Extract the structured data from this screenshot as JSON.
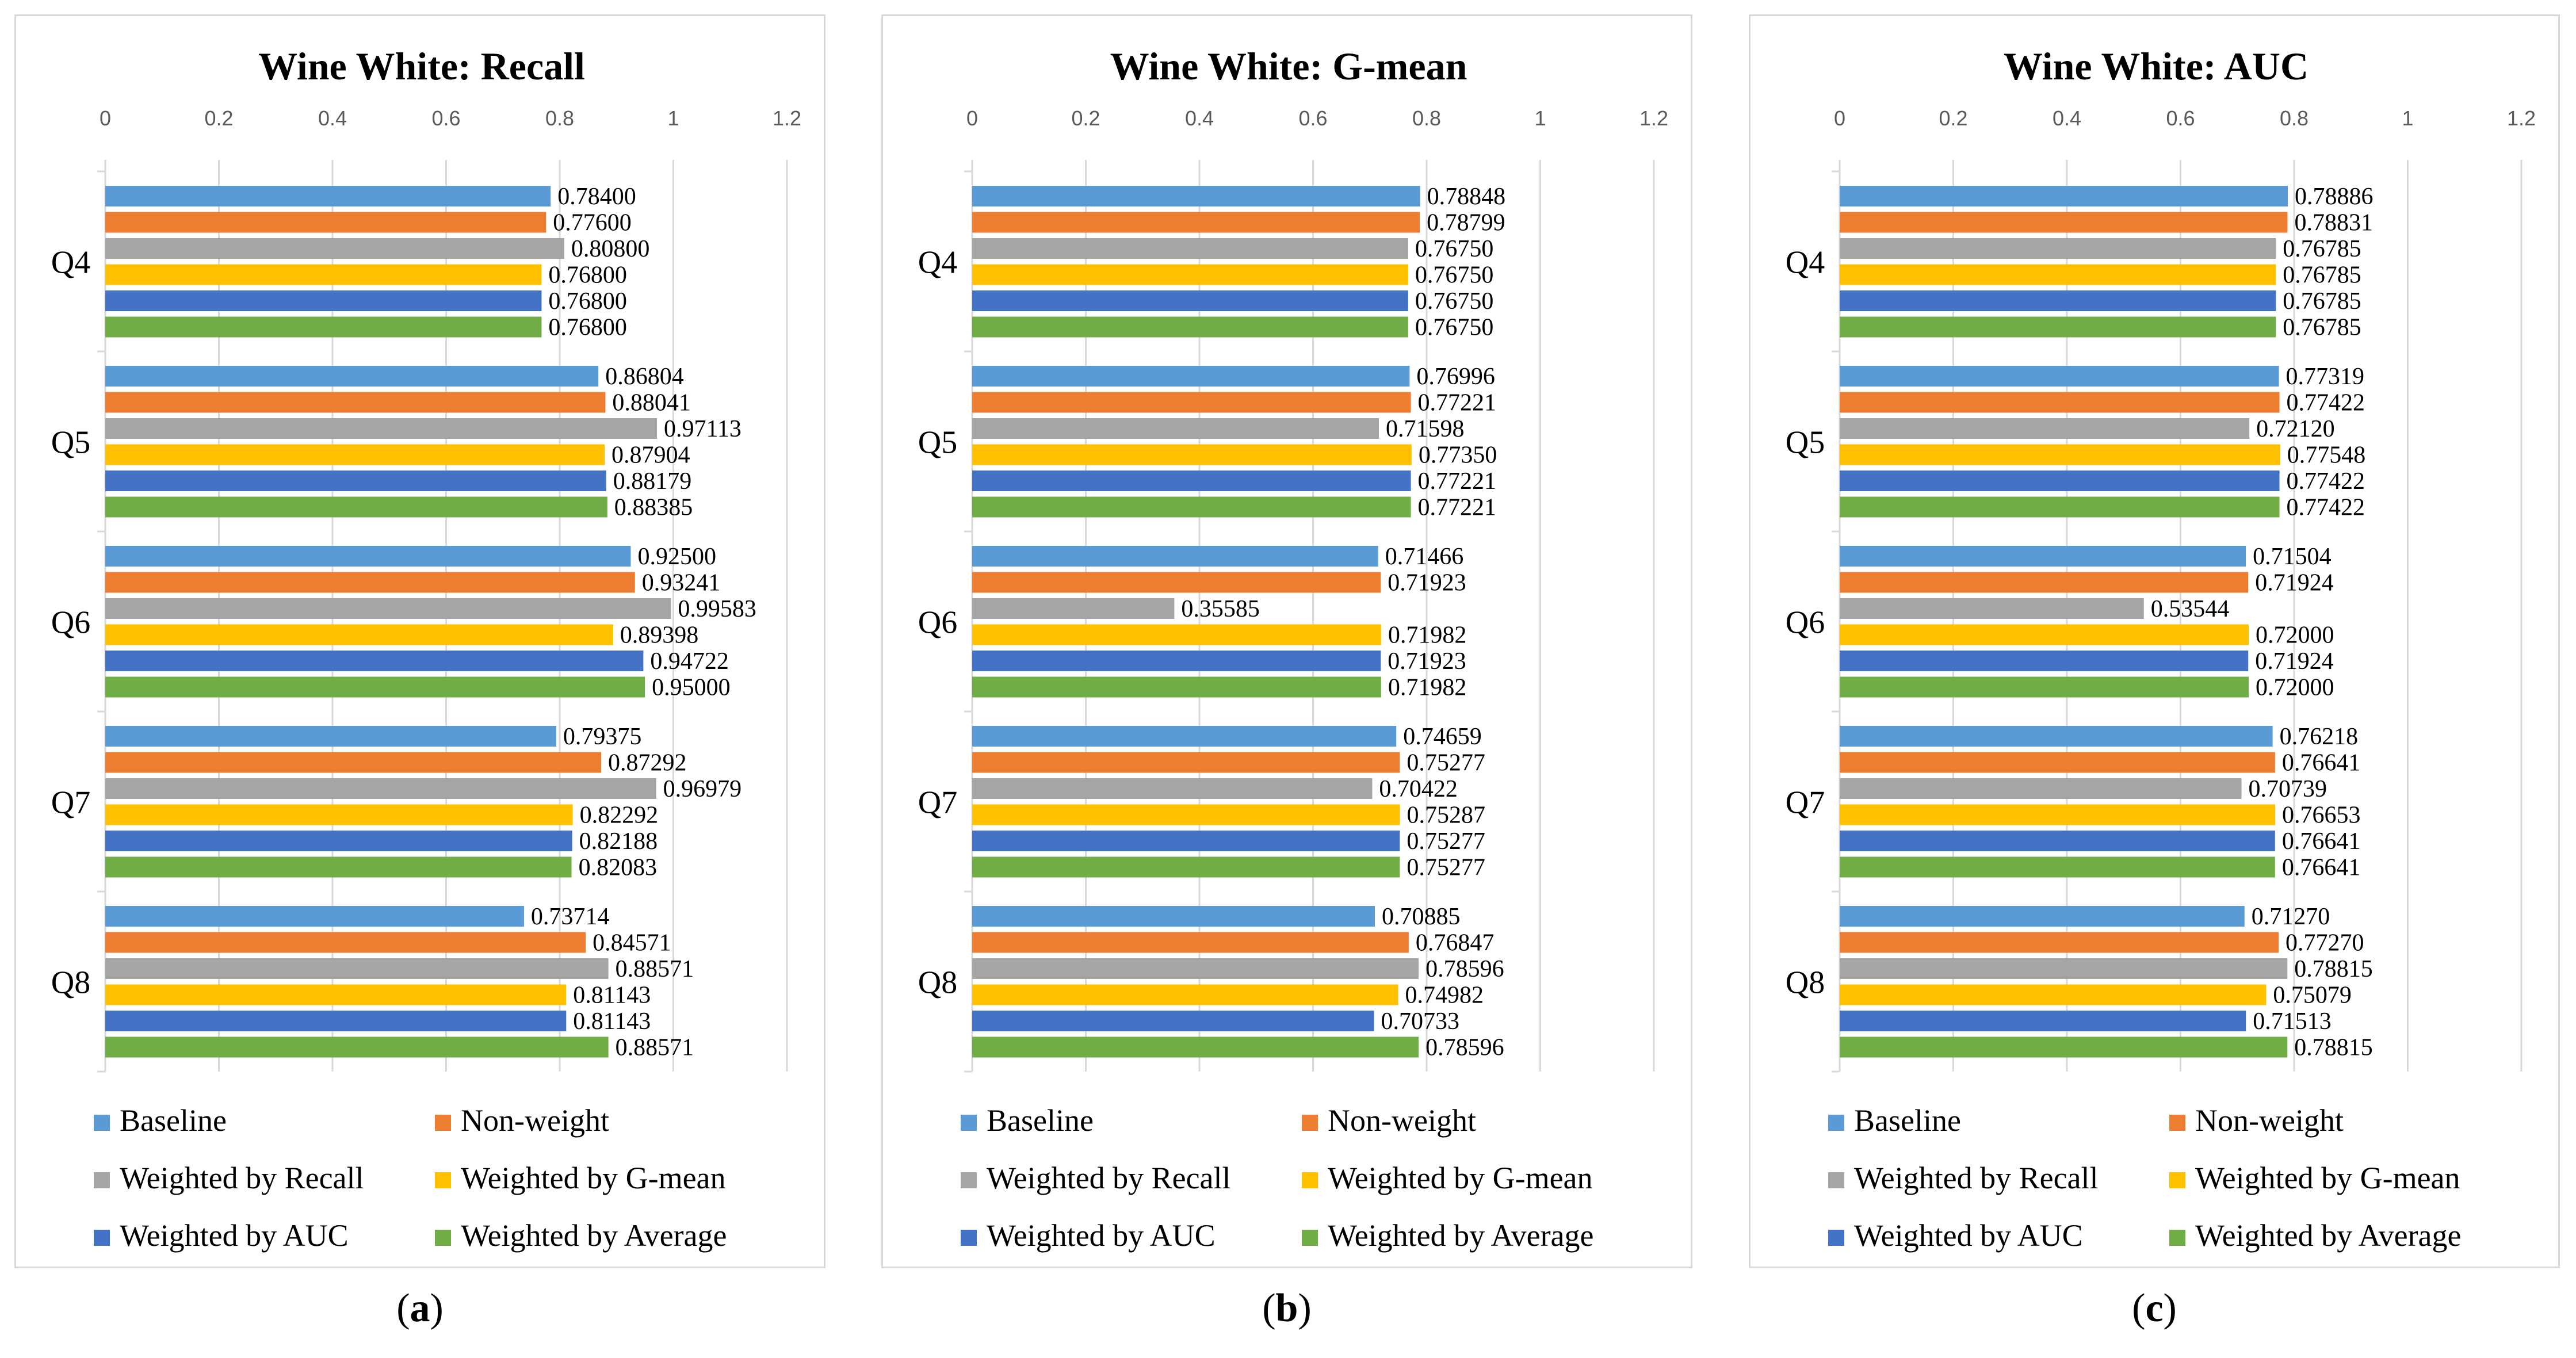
{
  "legend_labels": [
    "Baseline",
    "Non-weight",
    "Weighted by Recall",
    "Weighted by G-mean",
    "Weighted by AUC",
    "Weighted by Average"
  ],
  "series_colors": [
    "#5b9bd5",
    "#ed7d31",
    "#a5a5a5",
    "#ffc000",
    "#4472c4",
    "#70ad47"
  ],
  "chart_data": [
    {
      "type": "bar",
      "orientation": "horizontal",
      "title": "Wine White: Recall",
      "caption_letter": "a",
      "categories": [
        "Q4",
        "Q5",
        "Q6",
        "Q7",
        "Q8"
      ],
      "xlim": [
        0,
        1.2
      ],
      "xticks": [
        "0",
        "0.2",
        "0.4",
        "0.6",
        "0.8",
        "1",
        "1.2"
      ],
      "grid": true,
      "legend_position": "bottom",
      "series": [
        {
          "name": "Baseline",
          "values": [
            0.784,
            0.86804,
            0.925,
            0.79375,
            0.73714
          ],
          "labels": [
            "0.78400",
            "0.86804",
            "0.92500",
            "0.79375",
            "0.73714"
          ]
        },
        {
          "name": "Non-weight",
          "values": [
            0.776,
            0.88041,
            0.93241,
            0.87292,
            0.84571
          ],
          "labels": [
            "0.77600",
            "0.88041",
            "0.93241",
            "0.87292",
            "0.84571"
          ]
        },
        {
          "name": "Weighted by Recall",
          "values": [
            0.808,
            0.97113,
            0.99583,
            0.96979,
            0.88571
          ],
          "labels": [
            "0.80800",
            "0.97113",
            "0.99583",
            "0.96979",
            "0.88571"
          ]
        },
        {
          "name": "Weighted by G-mean",
          "values": [
            0.768,
            0.87904,
            0.89398,
            0.82292,
            0.81143
          ],
          "labels": [
            "0.76800",
            "0.87904",
            "0.89398",
            "0.82292",
            "0.81143"
          ]
        },
        {
          "name": "Weighted by AUC",
          "values": [
            0.768,
            0.88179,
            0.94722,
            0.82188,
            0.81143
          ],
          "labels": [
            "0.76800",
            "0.88179",
            "0.94722",
            "0.82188",
            "0.81143"
          ]
        },
        {
          "name": "Weighted by Average",
          "values": [
            0.768,
            0.88385,
            0.95,
            0.82083,
            0.88571
          ],
          "labels": [
            "0.76800",
            "0.88385",
            "0.95000",
            "0.82083",
            "0.88571"
          ]
        }
      ]
    },
    {
      "type": "bar",
      "orientation": "horizontal",
      "title": "Wine White: G-mean",
      "caption_letter": "b",
      "categories": [
        "Q4",
        "Q5",
        "Q6",
        "Q7",
        "Q8"
      ],
      "xlim": [
        0,
        1.2
      ],
      "xticks": [
        "0",
        "0.2",
        "0.4",
        "0.6",
        "0.8",
        "1",
        "1.2"
      ],
      "grid": true,
      "legend_position": "bottom",
      "series": [
        {
          "name": "Baseline",
          "values": [
            0.78848,
            0.76996,
            0.71466,
            0.74659,
            0.70885
          ],
          "labels": [
            "0.78848",
            "0.76996",
            "0.71466",
            "0.74659",
            "0.70885"
          ]
        },
        {
          "name": "Non-weight",
          "values": [
            0.78799,
            0.77221,
            0.71923,
            0.75277,
            0.76847
          ],
          "labels": [
            "0.78799",
            "0.77221",
            "0.71923",
            "0.75277",
            "0.76847"
          ]
        },
        {
          "name": "Weighted by Recall",
          "values": [
            0.7675,
            0.71598,
            0.35585,
            0.70422,
            0.78596
          ],
          "labels": [
            "0.76750",
            "0.71598",
            "0.35585",
            "0.70422",
            "0.78596"
          ]
        },
        {
          "name": "Weighted by G-mean",
          "values": [
            0.7675,
            0.7735,
            0.71982,
            0.75287,
            0.74982
          ],
          "labels": [
            "0.76750",
            "0.77350",
            "0.71982",
            "0.75287",
            "0.74982"
          ]
        },
        {
          "name": "Weighted by AUC",
          "values": [
            0.7675,
            0.77221,
            0.71923,
            0.75277,
            0.70733
          ],
          "labels": [
            "0.76750",
            "0.77221",
            "0.71923",
            "0.75277",
            "0.70733"
          ]
        },
        {
          "name": "Weighted by Average",
          "values": [
            0.7675,
            0.77221,
            0.71982,
            0.75277,
            0.78596
          ],
          "labels": [
            "0.76750",
            "0.77221",
            "0.71982",
            "0.75277",
            "0.78596"
          ]
        }
      ]
    },
    {
      "type": "bar",
      "orientation": "horizontal",
      "title": "Wine White: AUC",
      "caption_letter": "c",
      "categories": [
        "Q4",
        "Q5",
        "Q6",
        "Q7",
        "Q8"
      ],
      "xlim": [
        0,
        1.2
      ],
      "xticks": [
        "0",
        "0.2",
        "0.4",
        "0.6",
        "0.8",
        "1",
        "1.2"
      ],
      "grid": true,
      "legend_position": "bottom",
      "series": [
        {
          "name": "Baseline",
          "values": [
            0.78886,
            0.77319,
            0.71504,
            0.76218,
            0.7127
          ],
          "labels": [
            "0.78886",
            "0.77319",
            "0.71504",
            "0.76218",
            "0.71270"
          ]
        },
        {
          "name": "Non-weight",
          "values": [
            0.78831,
            0.77422,
            0.71924,
            0.76641,
            0.7727
          ],
          "labels": [
            "0.78831",
            "0.77422",
            "0.71924",
            "0.76641",
            "0.77270"
          ]
        },
        {
          "name": "Weighted by Recall",
          "values": [
            0.76785,
            0.7212,
            0.53544,
            0.70739,
            0.78815
          ],
          "labels": [
            "0.76785",
            "0.72120",
            "0.53544",
            "0.70739",
            "0.78815"
          ]
        },
        {
          "name": "Weighted by G-mean",
          "values": [
            0.76785,
            0.77548,
            0.72,
            0.76653,
            0.75079
          ],
          "labels": [
            "0.76785",
            "0.77548",
            "0.72000",
            "0.76653",
            "0.75079"
          ]
        },
        {
          "name": "Weighted by AUC",
          "values": [
            0.76785,
            0.77422,
            0.71924,
            0.76641,
            0.71513
          ],
          "labels": [
            "0.76785",
            "0.77422",
            "0.71924",
            "0.76641",
            "0.71513"
          ]
        },
        {
          "name": "Weighted by Average",
          "values": [
            0.76785,
            0.77422,
            0.72,
            0.76641,
            0.78815
          ],
          "labels": [
            "0.76785",
            "0.77422",
            "0.72000",
            "0.76641",
            "0.78815"
          ]
        }
      ]
    }
  ]
}
